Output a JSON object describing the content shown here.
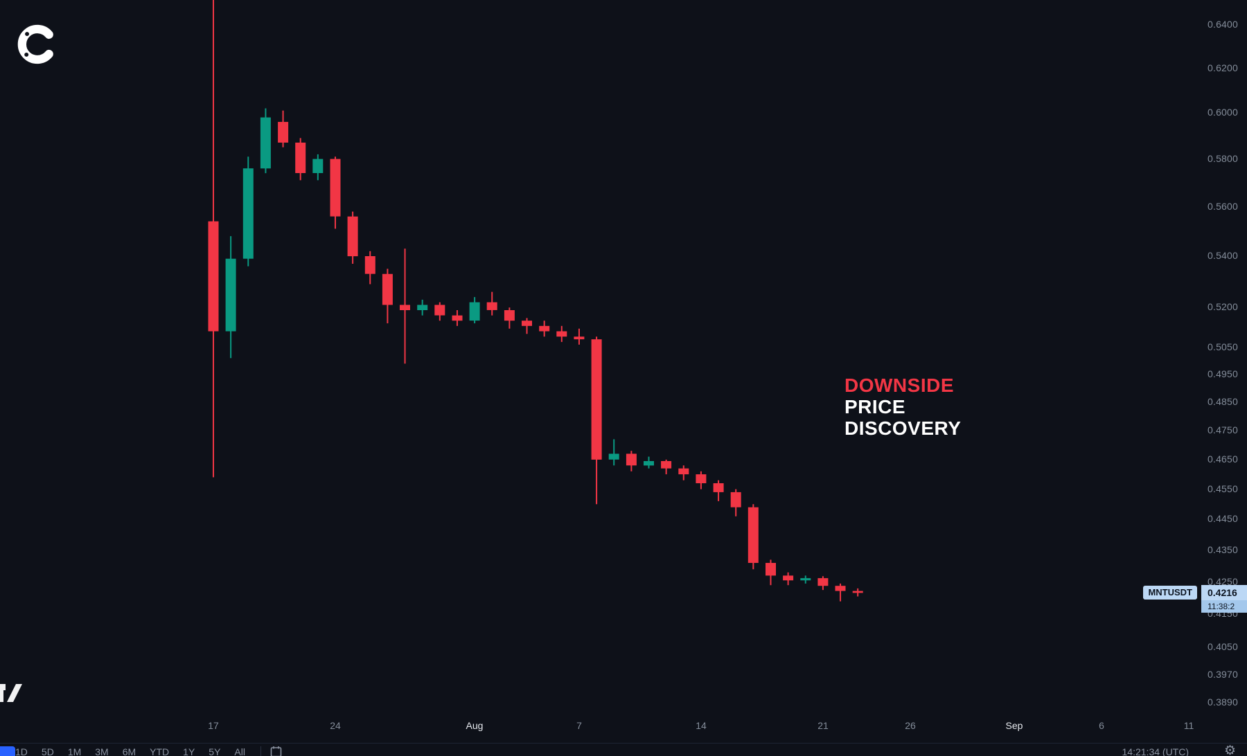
{
  "brand": {
    "logo_letter": "C"
  },
  "annotation": {
    "line1": "DOWNSIDE",
    "line2": "PRICE",
    "line3": "DISCOVERY",
    "accent_color": "#f23645",
    "text_color": "#ffffff"
  },
  "price_label": {
    "symbol": "MNTUSDT",
    "price": "0.4216",
    "countdown": "11:38:2",
    "bg_color": "#bcd8f5",
    "countdown_bg_color": "#a4c8ec",
    "text_color": "#0c1420"
  },
  "toolbar": {
    "ranges": [
      "1D",
      "5D",
      "1M",
      "3M",
      "6M",
      "YTD",
      "1Y",
      "5Y",
      "All"
    ],
    "time": "14:21:34 (UTC)"
  },
  "chart_data": {
    "type": "candlestick",
    "symbol": "MNTUSDT",
    "scale": "log",
    "grid": "off",
    "up_color": "#0a9a82",
    "down_color": "#f23645",
    "last_price": 0.4216,
    "y_axis_labels": [
      "0.6400",
      "0.6200",
      "0.6000",
      "0.5800",
      "0.5600",
      "0.5400",
      "0.5200",
      "0.5050",
      "0.4950",
      "0.4850",
      "0.4750",
      "0.4650",
      "0.4550",
      "0.4450",
      "0.4350",
      "0.4250",
      "0.4150",
      "0.4050",
      "0.3970",
      "0.3890"
    ],
    "x_axis_ticks": [
      {
        "label": "17",
        "day": 0
      },
      {
        "label": "24",
        "day": 7
      },
      {
        "label": "Aug",
        "day": 15,
        "major": true
      },
      {
        "label": "7",
        "day": 21
      },
      {
        "label": "14",
        "day": 28
      },
      {
        "label": "21",
        "day": 35
      },
      {
        "label": "26",
        "day": 40
      },
      {
        "label": "Sep",
        "day": 46,
        "major": true
      },
      {
        "label": "6",
        "day": 51
      },
      {
        "label": "11",
        "day": 56
      }
    ],
    "candles": [
      {
        "date": "Jul 17",
        "o": 0.554,
        "h": 0.655,
        "l": 0.459,
        "c": 0.511
      },
      {
        "date": "Jul 18",
        "o": 0.511,
        "h": 0.548,
        "l": 0.501,
        "c": 0.539
      },
      {
        "date": "Jul 19",
        "o": 0.539,
        "h": 0.581,
        "l": 0.536,
        "c": 0.576
      },
      {
        "date": "Jul 20",
        "o": 0.576,
        "h": 0.602,
        "l": 0.574,
        "c": 0.598
      },
      {
        "date": "Jul 21",
        "o": 0.596,
        "h": 0.601,
        "l": 0.585,
        "c": 0.587
      },
      {
        "date": "Jul 22",
        "o": 0.587,
        "h": 0.589,
        "l": 0.571,
        "c": 0.574
      },
      {
        "date": "Jul 23",
        "o": 0.574,
        "h": 0.582,
        "l": 0.571,
        "c": 0.58
      },
      {
        "date": "Jul 24",
        "o": 0.58,
        "h": 0.581,
        "l": 0.551,
        "c": 0.556
      },
      {
        "date": "Jul 25",
        "o": 0.556,
        "h": 0.558,
        "l": 0.537,
        "c": 0.54
      },
      {
        "date": "Jul 26",
        "o": 0.54,
        "h": 0.542,
        "l": 0.529,
        "c": 0.533
      },
      {
        "date": "Jul 27",
        "o": 0.533,
        "h": 0.535,
        "l": 0.514,
        "c": 0.521
      },
      {
        "date": "Jul 28",
        "o": 0.521,
        "h": 0.543,
        "l": 0.499,
        "c": 0.519
      },
      {
        "date": "Jul 29",
        "o": 0.519,
        "h": 0.523,
        "l": 0.517,
        "c": 0.521
      },
      {
        "date": "Jul 30",
        "o": 0.521,
        "h": 0.522,
        "l": 0.515,
        "c": 0.517
      },
      {
        "date": "Jul 31",
        "o": 0.517,
        "h": 0.519,
        "l": 0.513,
        "c": 0.515
      },
      {
        "date": "Aug 1",
        "o": 0.515,
        "h": 0.524,
        "l": 0.514,
        "c": 0.522
      },
      {
        "date": "Aug 2",
        "o": 0.522,
        "h": 0.526,
        "l": 0.517,
        "c": 0.519
      },
      {
        "date": "Aug 3",
        "o": 0.519,
        "h": 0.52,
        "l": 0.512,
        "c": 0.515
      },
      {
        "date": "Aug 4",
        "o": 0.515,
        "h": 0.516,
        "l": 0.51,
        "c": 0.513
      },
      {
        "date": "Aug 5",
        "o": 0.513,
        "h": 0.515,
        "l": 0.509,
        "c": 0.511
      },
      {
        "date": "Aug 6",
        "o": 0.511,
        "h": 0.513,
        "l": 0.507,
        "c": 0.509
      },
      {
        "date": "Aug 7",
        "o": 0.509,
        "h": 0.512,
        "l": 0.506,
        "c": 0.508
      },
      {
        "date": "Aug 8",
        "o": 0.508,
        "h": 0.509,
        "l": 0.45,
        "c": 0.465
      },
      {
        "date": "Aug 9",
        "o": 0.465,
        "h": 0.472,
        "l": 0.463,
        "c": 0.467
      },
      {
        "date": "Aug 10",
        "o": 0.467,
        "h": 0.468,
        "l": 0.461,
        "c": 0.463
      },
      {
        "date": "Aug 11",
        "o": 0.463,
        "h": 0.466,
        "l": 0.462,
        "c": 0.4645
      },
      {
        "date": "Aug 12",
        "o": 0.4645,
        "h": 0.465,
        "l": 0.46,
        "c": 0.462
      },
      {
        "date": "Aug 13",
        "o": 0.462,
        "h": 0.463,
        "l": 0.458,
        "c": 0.46
      },
      {
        "date": "Aug 14",
        "o": 0.46,
        "h": 0.461,
        "l": 0.455,
        "c": 0.457
      },
      {
        "date": "Aug 15",
        "o": 0.457,
        "h": 0.458,
        "l": 0.451,
        "c": 0.454
      },
      {
        "date": "Aug 16",
        "o": 0.454,
        "h": 0.455,
        "l": 0.446,
        "c": 0.449
      },
      {
        "date": "Aug 17",
        "o": 0.449,
        "h": 0.45,
        "l": 0.429,
        "c": 0.431
      },
      {
        "date": "Aug 18",
        "o": 0.431,
        "h": 0.432,
        "l": 0.424,
        "c": 0.427
      },
      {
        "date": "Aug 19",
        "o": 0.427,
        "h": 0.428,
        "l": 0.424,
        "c": 0.4255
      },
      {
        "date": "Aug 20",
        "o": 0.4255,
        "h": 0.427,
        "l": 0.4245,
        "c": 0.4262
      },
      {
        "date": "Aug 21",
        "o": 0.4262,
        "h": 0.4268,
        "l": 0.4225,
        "c": 0.4238
      },
      {
        "date": "Aug 22",
        "o": 0.4238,
        "h": 0.4245,
        "l": 0.419,
        "c": 0.4222
      },
      {
        "date": "Aug 23",
        "o": 0.4222,
        "h": 0.423,
        "l": 0.4205,
        "c": 0.4216
      }
    ]
  }
}
